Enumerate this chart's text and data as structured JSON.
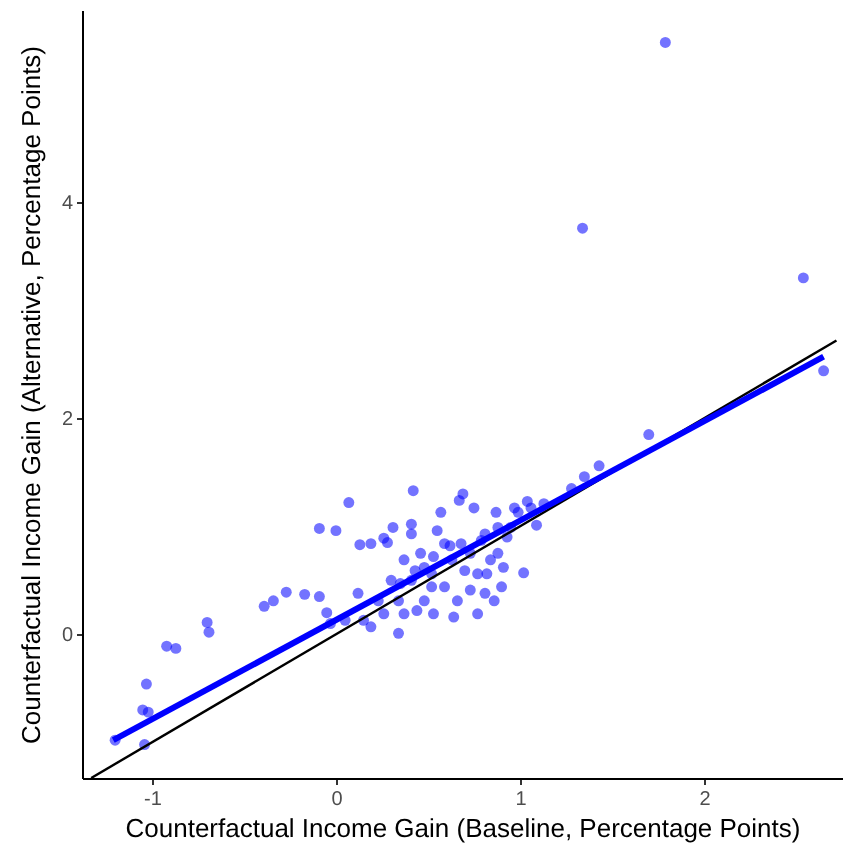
{
  "chart_data": {
    "type": "scatter",
    "xlabel": "Counterfactual Income Gain (Baseline, Percentage Points)",
    "ylabel": "Counterfactual Income Gain (Alternative, Percentage Points)",
    "xlim": [
      -1.38,
      2.75
    ],
    "ylim": [
      -1.33,
      5.78
    ],
    "xticks": [
      -1,
      0,
      1,
      2
    ],
    "yticks": [
      0,
      2,
      4
    ],
    "grid": false,
    "series": [
      {
        "marker": "circle",
        "color": "#0000ff",
        "x": [
          1.79,
          1.34,
          2.54,
          2.65,
          1.7,
          1.43,
          1.35,
          1.28,
          -1.2,
          -1.04,
          -1.03,
          -1.05,
          -1.02,
          -0.92,
          -0.87,
          -0.7,
          -0.69,
          -0.39,
          -0.34,
          -0.27,
          -0.17,
          -0.09,
          -0.05,
          -0.03,
          0.05,
          0.07,
          -0.09,
          0.0,
          0.13,
          0.19,
          0.26,
          0.28,
          0.31,
          0.34,
          0.37,
          0.37,
          0.41,
          0.42,
          0.41,
          0.44,
          0.46,
          0.48,
          0.52,
          0.53,
          0.55,
          0.57,
          0.59,
          0.62,
          0.64,
          0.66,
          0.67,
          0.69,
          0.7,
          0.73,
          0.75,
          0.77,
          0.79,
          0.81,
          0.82,
          0.84,
          0.86,
          0.87,
          0.88,
          0.9,
          0.91,
          0.93,
          0.95,
          0.97,
          0.99,
          1.02,
          1.04,
          1.06,
          1.09,
          1.13,
          0.3,
          0.34,
          0.23,
          0.15,
          0.12,
          0.41,
          0.52,
          0.63,
          0.73,
          0.77,
          0.59,
          0.48,
          0.26,
          0.19,
          0.35,
          0.43,
          0.53,
          0.68,
          0.81,
          0.88
        ],
        "values": [
          5.48,
          3.76,
          3.3,
          2.44,
          1.85,
          1.56,
          1.46,
          1.35,
          -0.98,
          -1.02,
          -0.46,
          -0.7,
          -0.72,
          -0.11,
          -0.13,
          0.11,
          0.02,
          0.26,
          0.31,
          0.39,
          0.37,
          0.35,
          0.2,
          0.1,
          0.13,
          1.22,
          0.98,
          0.96,
          0.83,
          0.84,
          0.89,
          0.85,
          0.99,
          0.01,
          0.69,
          0.19,
          1.02,
          1.33,
          0.93,
          0.22,
          0.75,
          0.62,
          0.44,
          0.19,
          0.96,
          1.13,
          0.84,
          0.82,
          0.16,
          0.31,
          1.24,
          1.3,
          0.59,
          0.41,
          1.17,
          0.19,
          0.87,
          0.38,
          0.56,
          0.69,
          0.31,
          1.13,
          0.75,
          0.44,
          0.62,
          0.9,
          0.99,
          1.17,
          1.13,
          0.57,
          1.23,
          1.17,
          1.01,
          1.21,
          0.5,
          0.31,
          0.31,
          0.13,
          0.38,
          0.5,
          0.56,
          0.69,
          0.75,
          0.56,
          0.44,
          0.31,
          0.19,
          0.07,
          0.47,
          0.59,
          0.72,
          0.84,
          0.93,
          0.99
        ]
      },
      {
        "type": "line",
        "marker": "none",
        "color": "#000000",
        "x": [
          -1.33,
          2.72
        ],
        "values": [
          -1.33,
          2.72
        ]
      },
      {
        "type": "line",
        "marker": "none",
        "color": "#0000ff",
        "x": [
          -1.21,
          2.65
        ],
        "values": [
          -0.98,
          2.57
        ]
      }
    ]
  }
}
